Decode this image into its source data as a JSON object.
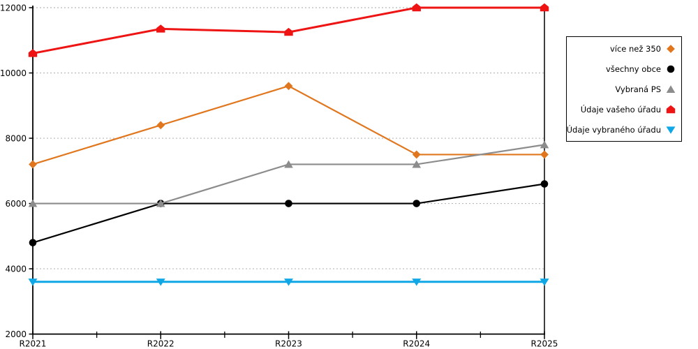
{
  "chart_data": {
    "type": "line",
    "title": "",
    "categories": [
      "R2021",
      "R2022",
      "R2023",
      "R2024",
      "R2025"
    ],
    "yticks": [
      2000,
      4000,
      6000,
      8000,
      10000,
      12000
    ],
    "ylim": [
      2000,
      12000
    ],
    "grid": "horizontal-dotted",
    "grid_color": "#B8B8B8",
    "axis_color": "#000000",
    "legend_position": "right",
    "series": [
      {
        "name": "více než 350",
        "marker": "diamond",
        "color": "#E0771E",
        "line_width": 2.2,
        "values": [
          7200,
          8400,
          9600,
          7500,
          7500
        ]
      },
      {
        "name": "všechny obce",
        "marker": "circle",
        "color": "#000000",
        "line_width": 2.2,
        "values": [
          4800,
          6000,
          6000,
          6000,
          6600
        ]
      },
      {
        "name": "Vybraná PS",
        "marker": "triangle-up",
        "color": "#8C8C8C",
        "line_width": 2.2,
        "values": [
          6000,
          6000,
          7200,
          7200,
          7800
        ]
      },
      {
        "name": "Údaje vašeho úřadu",
        "marker": "pentagon",
        "color": "#EE1414",
        "line_width": 3,
        "values": [
          10600,
          11350,
          11250,
          12000,
          12000
        ]
      },
      {
        "name": "Údaje vybraného úřadu",
        "marker": "triangle-down",
        "color": "#0FA7E6",
        "line_width": 3,
        "values": [
          3600,
          3600,
          3600,
          3600,
          3600
        ]
      }
    ]
  }
}
